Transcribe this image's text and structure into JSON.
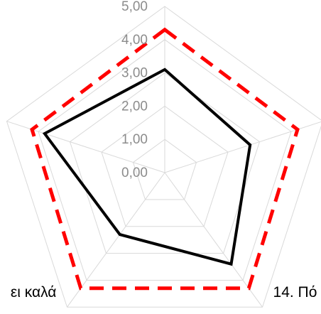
{
  "chart_data": {
    "type": "radar",
    "categories": [
      null,
      null,
      "14. Πό",
      "ει καλά",
      null
    ],
    "ylim": [
      0,
      5
    ],
    "yticks": [
      {
        "value": 0,
        "label": "0,00"
      },
      {
        "value": 1,
        "label": "1,00"
      },
      {
        "value": 2,
        "label": "2,00"
      },
      {
        "value": 3,
        "label": "3,00"
      },
      {
        "value": 4,
        "label": "4,00"
      },
      {
        "value": 5,
        "label": "5,00"
      }
    ],
    "grid": true,
    "series": [
      {
        "color": "#000000",
        "values": [
          3.1,
          2.7,
          3.4,
          2.3,
          3.8
        ]
      },
      {
        "color": "#ff0000",
        "dashed": true,
        "values": [
          4.3,
          4.2,
          4.3,
          4.3,
          4.2
        ]
      }
    ]
  }
}
